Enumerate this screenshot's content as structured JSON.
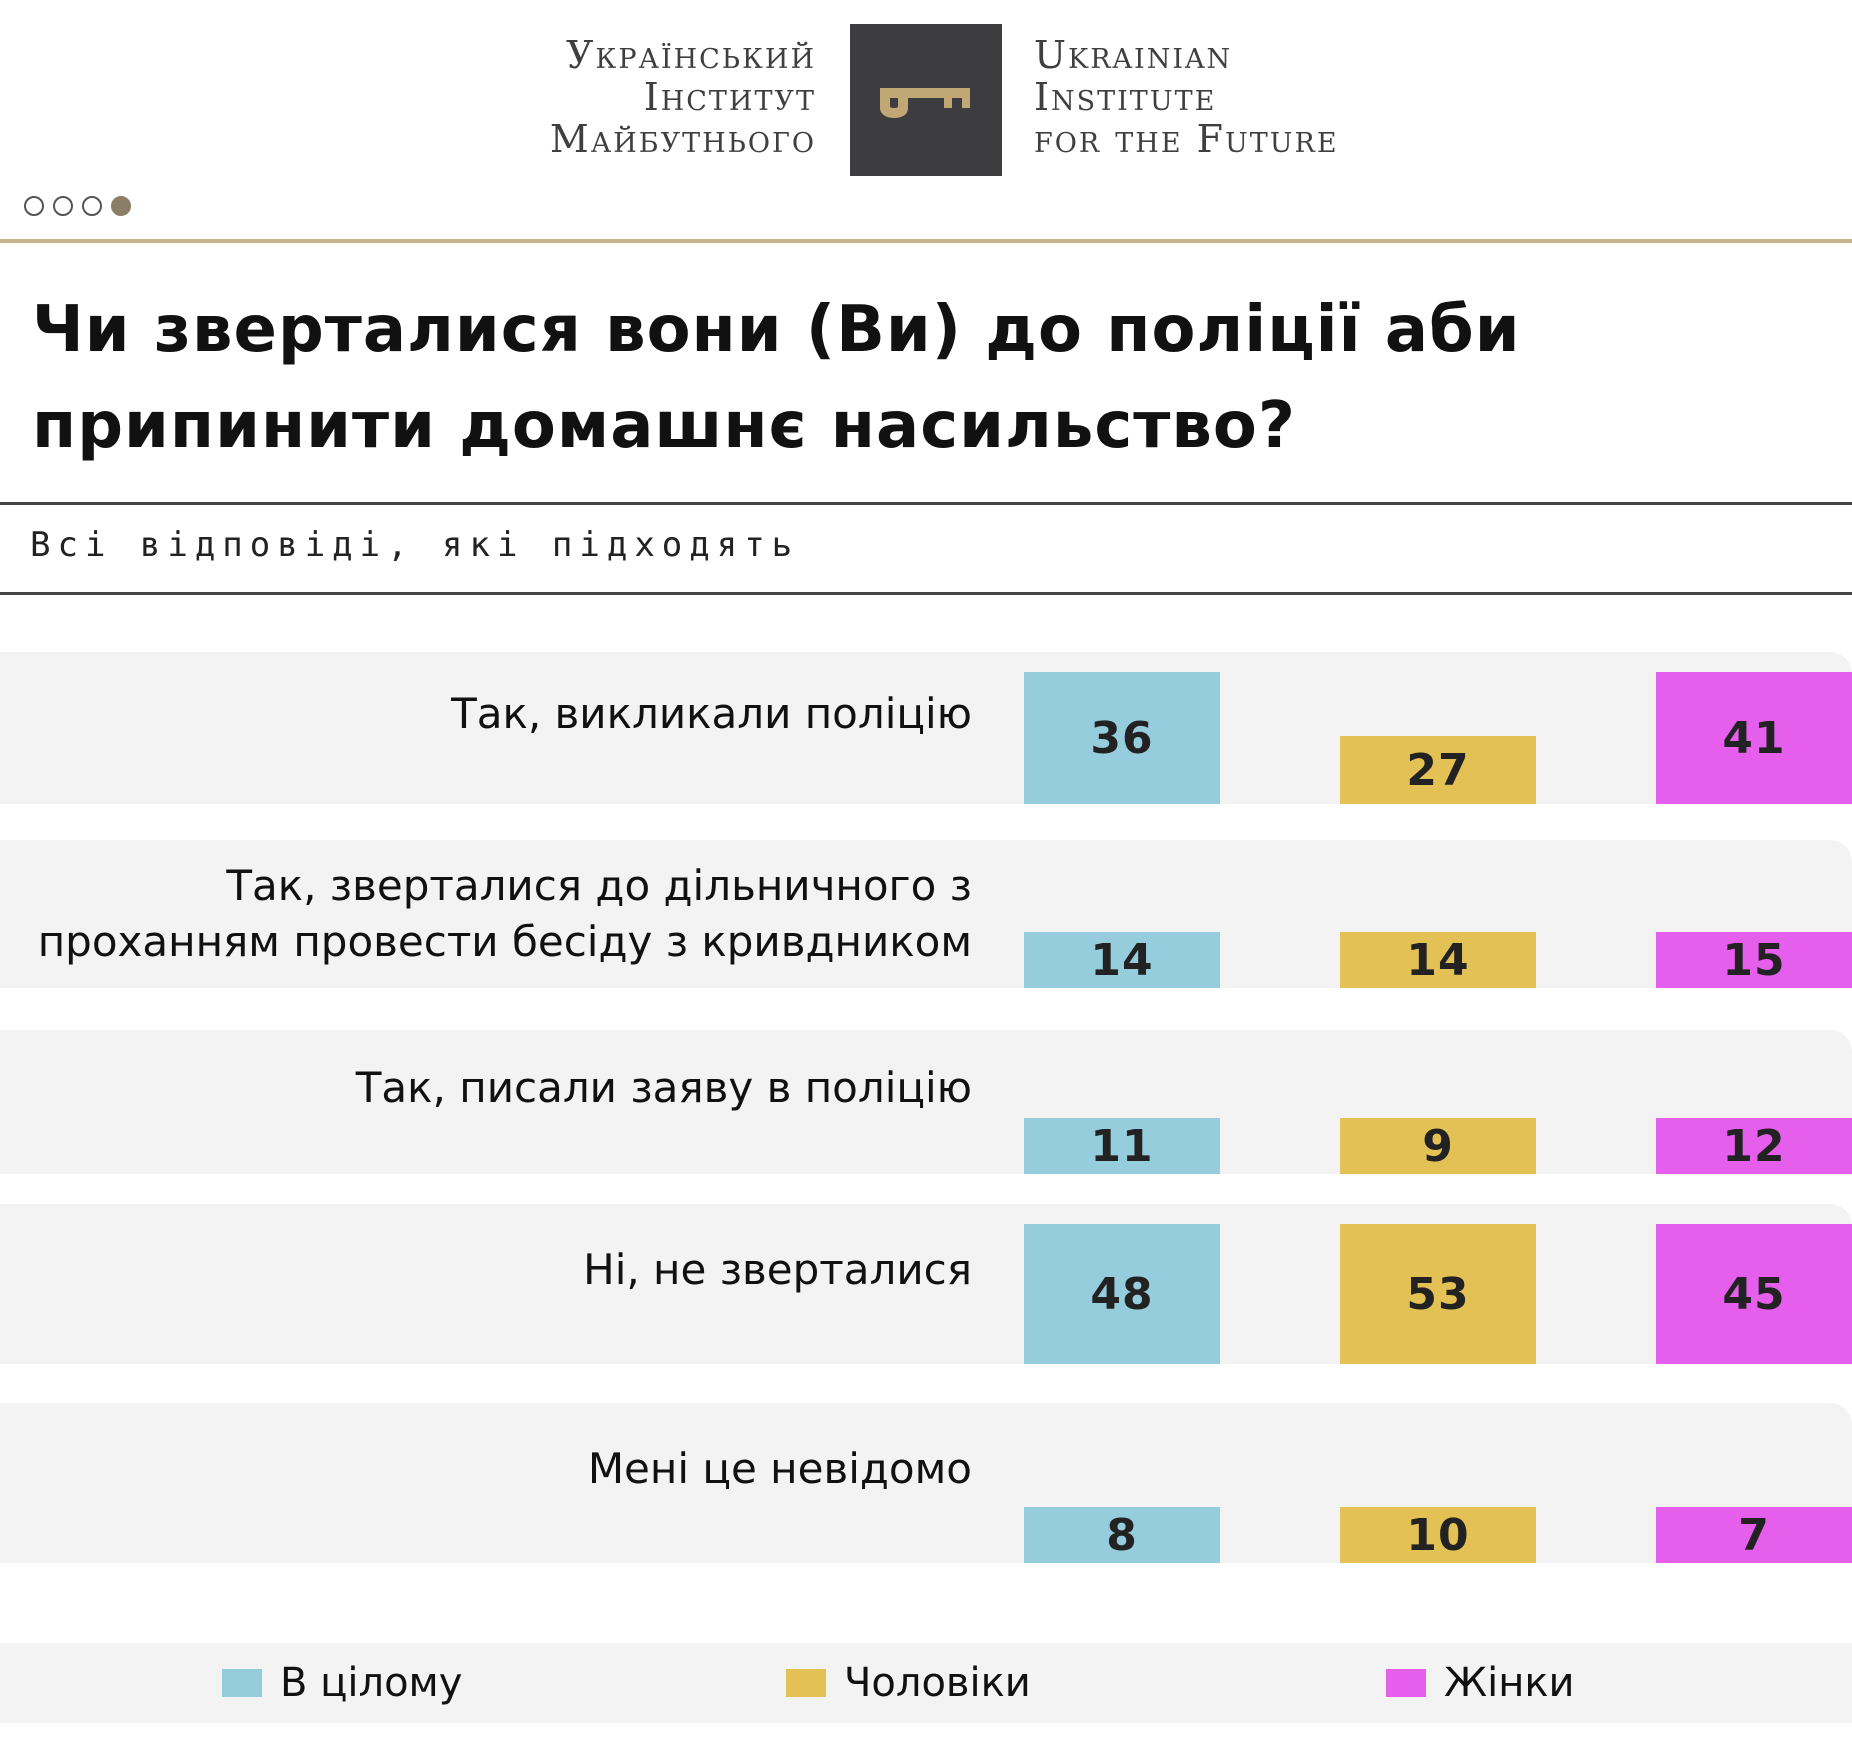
{
  "header": {
    "logo_ua": [
      "Український",
      "Інститут",
      "Майбутнього"
    ],
    "logo_en": [
      "Ukrainian",
      "Institute",
      "for the Future"
    ],
    "logo_icon": "key-icon",
    "page_dots": 4,
    "active_dot": 4
  },
  "title_lines": [
    "Чи зверталися вони (Ви) до поліції аби",
    "припинити домашнє насильство?"
  ],
  "subtitle": "Всі відповіді, які підходять",
  "colors": {
    "total": "#95cddd",
    "men": "#e3c155",
    "women": "#e55fec"
  },
  "chart_data": {
    "type": "bar",
    "title": "Чи зверталися вони (Ви) до поліції аби припинити домашнє насильство?",
    "subtitle": "Всі відповіді, які підходять",
    "categories": [
      "Так, викликали поліцію",
      "Так, зверталися до дільничного з\nпроханням провести бесіду з кривдником",
      "Так, писали заяву в поліцію",
      "Ні, не зверталися",
      "Мені це невідомо"
    ],
    "series": [
      {
        "name": "В цілому",
        "values": [
          36,
          14,
          11,
          48,
          8
        ]
      },
      {
        "name": "Чоловіки",
        "values": [
          27,
          14,
          9,
          53,
          10
        ]
      },
      {
        "name": "Жінки",
        "values": [
          41,
          15,
          12,
          45,
          7
        ]
      }
    ],
    "legend": [
      "В цілому",
      "Чоловіки",
      "Жінки"
    ]
  }
}
